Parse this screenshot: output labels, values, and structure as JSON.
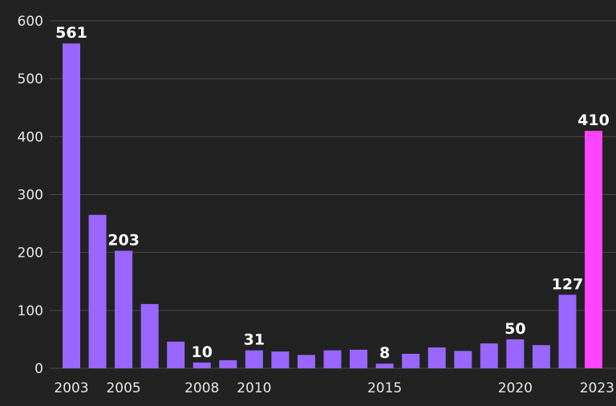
{
  "chart_data": {
    "type": "bar",
    "title": "",
    "xlabel": "",
    "ylabel": "",
    "ylim": [
      0,
      600
    ],
    "yticks": [
      0,
      100,
      200,
      300,
      400,
      500,
      600
    ],
    "grid": true,
    "categories": [
      "2003",
      "2004",
      "2005",
      "2006",
      "2007",
      "2008",
      "2009",
      "2010",
      "2011",
      "2012",
      "2013",
      "2014",
      "2015",
      "2016",
      "2017",
      "2018",
      "2019",
      "2020",
      "2021",
      "2022",
      "2023"
    ],
    "xtick_labels": [
      "2003",
      "2005",
      "2008",
      "2010",
      "2015",
      "2020",
      "2023"
    ],
    "values": [
      561,
      265,
      203,
      111,
      46,
      10,
      14,
      31,
      29,
      23,
      31,
      32,
      8,
      25,
      36,
      30,
      43,
      50,
      40,
      127,
      410
    ],
    "data_labels": {
      "2003": "561",
      "2005": "203",
      "2008": "10",
      "2010": "31",
      "2015": "8",
      "2020": "50",
      "2022": "127",
      "2023": "410"
    },
    "colors": {
      "default": "#9966ff",
      "highlight": "#ff44ff",
      "highlight_category": "2023",
      "background": "#222222",
      "grid": "#4a4a4a",
      "text": "#e8e8e8"
    }
  }
}
